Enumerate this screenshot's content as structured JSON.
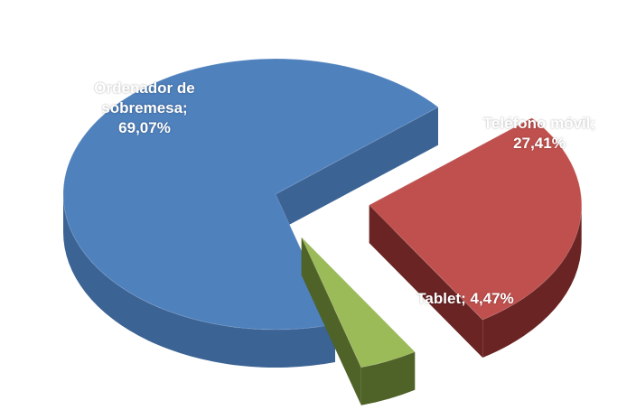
{
  "chart_data": {
    "type": "pie",
    "categories": [
      "Ordenador de sobremesa;",
      "Teléfono móvil;",
      "Tablet;"
    ],
    "values": [
      69.07,
      27.41,
      4.47
    ],
    "value_labels": [
      "69,07%",
      "27,41%",
      "4,47%"
    ],
    "colors": [
      "#4f81bd",
      "#c0504d",
      "#9bbb59"
    ],
    "side_colors": [
      "#3b6394",
      "#6a2424",
      "#4f6228"
    ],
    "three_d": true,
    "exploded": [
      1,
      2
    ]
  }
}
